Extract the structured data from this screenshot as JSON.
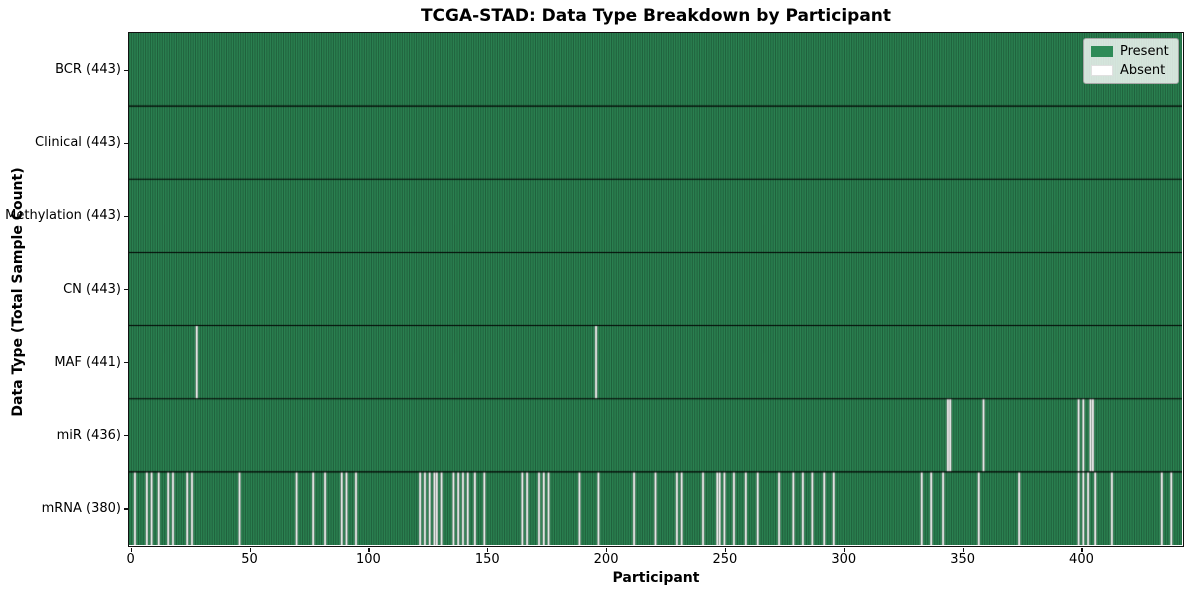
{
  "title": "TCGA-STAD: Data Type Breakdown by Participant",
  "axes": {
    "x_label": "Participant",
    "y_label": "Data Type (Total Sample Count)"
  },
  "legend": {
    "present_label": "Present",
    "absent_label": "Absent"
  },
  "colors": {
    "present": "#2e8b57",
    "absent": "#ffffff",
    "cell_edge": "rgba(0,0,0,0.5)",
    "row_divider": "#000000",
    "frame": "#111111"
  },
  "chart_data": {
    "type": "heatmap",
    "title": "TCGA-STAD: Data Type Breakdown by Participant",
    "xlabel": "Participant",
    "ylabel": "Data Type (Total Sample Count)",
    "legend_entries": [
      {
        "label": "Present",
        "color": "#2e8b57"
      },
      {
        "label": "Absent",
        "color": "#ffffff"
      }
    ],
    "legend_position": "upper right",
    "grid": false,
    "n_participants": 443,
    "xlim": [
      -0.5,
      442.5
    ],
    "x_ticks": [
      0,
      50,
      100,
      150,
      200,
      250,
      300,
      350,
      400
    ],
    "rows": [
      {
        "label": "BCR (443)",
        "data_type": "BCR",
        "total_sample_count": 443,
        "absent_participants": []
      },
      {
        "label": "Clinical (443)",
        "data_type": "Clinical",
        "total_sample_count": 443,
        "absent_participants": []
      },
      {
        "label": "Methylation (443)",
        "data_type": "Methylation",
        "total_sample_count": 443,
        "absent_participants": []
      },
      {
        "label": "CN (443)",
        "data_type": "CN",
        "total_sample_count": 443,
        "absent_participants": []
      },
      {
        "label": "MAF (441)",
        "data_type": "MAF",
        "total_sample_count": 441,
        "absent_participants": [
          28,
          196
        ]
      },
      {
        "label": "miR (436)",
        "data_type": "miR",
        "total_sample_count": 436,
        "absent_participants": [
          344,
          345,
          359,
          399,
          401,
          404,
          405
        ]
      },
      {
        "label": "mRNA (380)",
        "data_type": "mRNA",
        "total_sample_count": 380,
        "absent_participants": [
          2,
          7,
          9,
          12,
          16,
          18,
          24,
          26,
          46,
          70,
          77,
          82,
          89,
          91,
          95,
          122,
          124,
          126,
          128,
          129,
          131,
          136,
          138,
          140,
          142,
          145,
          149,
          165,
          167,
          172,
          174,
          176,
          189,
          197,
          212,
          221,
          230,
          232,
          241,
          247,
          248,
          250,
          254,
          259,
          264,
          273,
          279,
          283,
          287,
          292,
          296,
          333,
          337,
          342,
          357,
          374,
          399,
          401,
          403,
          406,
          413,
          434,
          438
        ]
      }
    ]
  }
}
